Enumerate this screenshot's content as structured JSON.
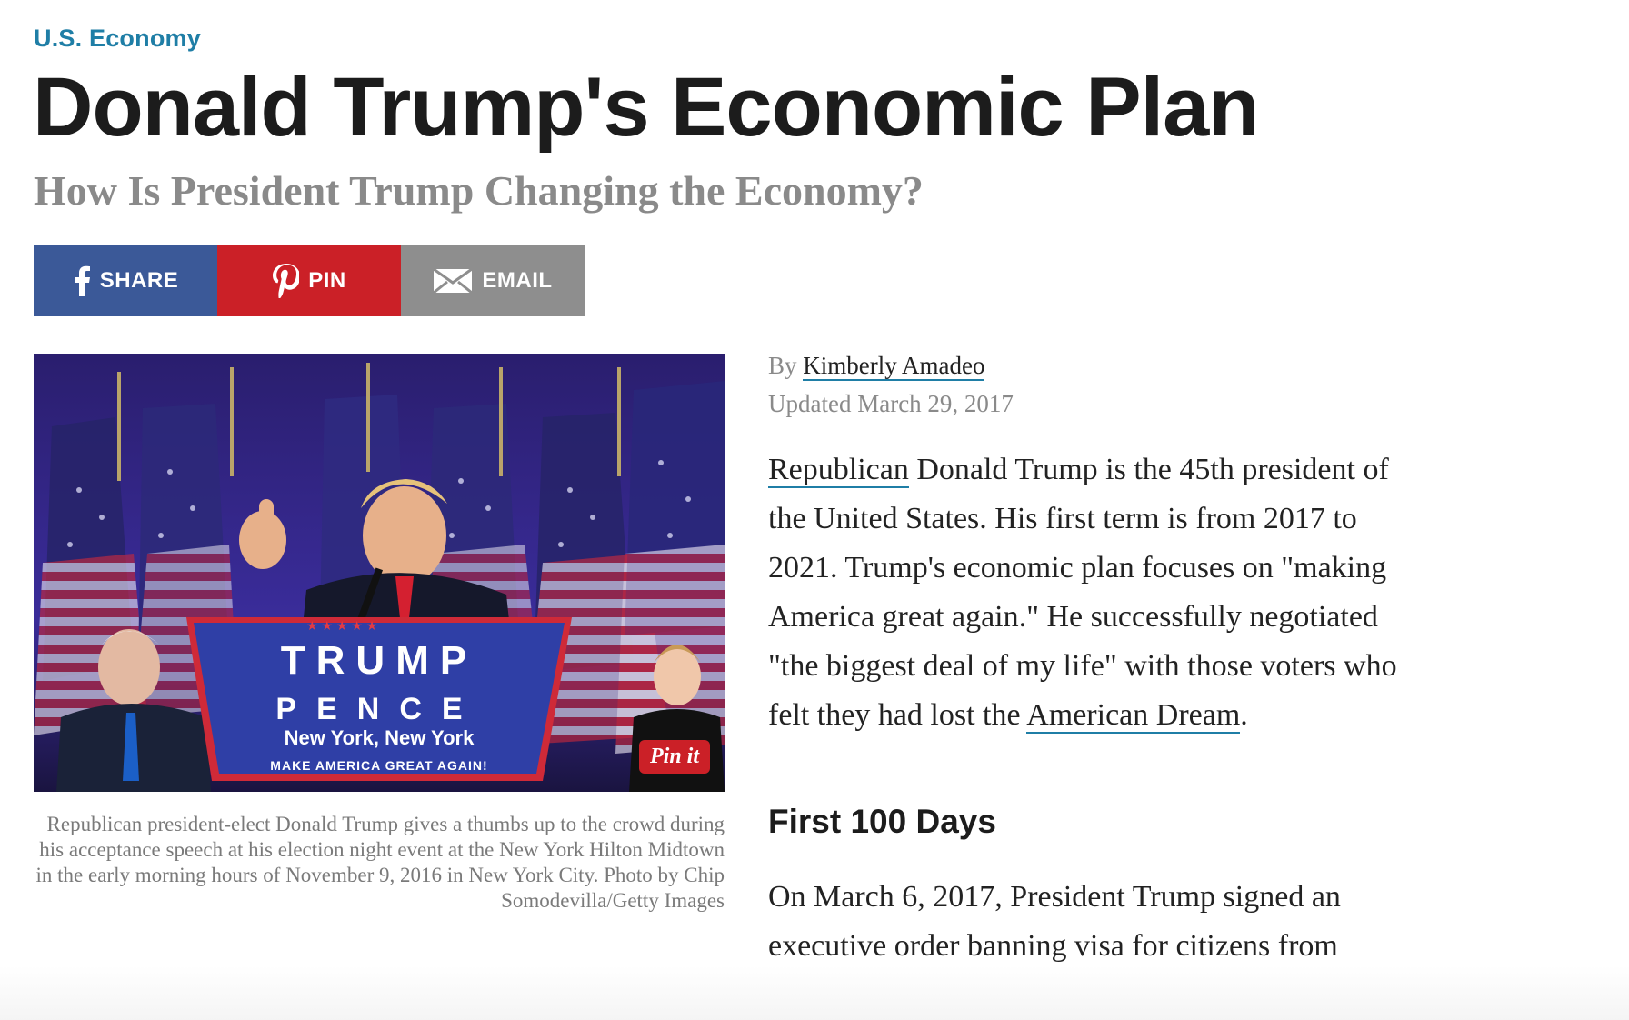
{
  "category": "U.S. Economy",
  "headline": "Donald Trump's Economic Plan",
  "subheadline": "How Is President Trump Changing the Economy?",
  "share": {
    "share_label": "SHARE",
    "pin_label": "PIN",
    "email_label": "EMAIL"
  },
  "photo": {
    "sign_line1": "TRUMP",
    "sign_line2": "PENCE",
    "sign_line3": "New York, New York",
    "sign_line4": "MAKE AMERICA GREAT AGAIN!",
    "pin_it_label": "Pin it",
    "caption": "Republican president-elect Donald Trump gives a thumbs up to the crowd during his acceptance speech at his election night event at the New York Hilton Midtown in the early morning hours of November 9, 2016 in New York City. Photo by Chip Somodevilla/Getty Images"
  },
  "byline": {
    "by_prefix": "By",
    "author": "Kimberly Amadeo",
    "updated": "Updated March 29, 2017"
  },
  "article": {
    "intro_link": "Republican",
    "intro_text": " Donald Trump is the 45th president of the United States. His first term is from 2017 to 2021. Trump's economic plan focuses on \"making America great again.\" He successfully negotiated \"the biggest deal of my life\" with those voters who felt they had lost the ",
    "intro_link2": "American Dream",
    "intro_end": ".",
    "section1_title": "First 100 Days",
    "section1_text": "On March 6, 2017, President Trump signed an executive order banning visa for citizens from"
  },
  "colors": {
    "category": "#1f7ea6",
    "facebook": "#3b5998",
    "pinterest": "#cb2027",
    "email": "#8e8e8e"
  }
}
